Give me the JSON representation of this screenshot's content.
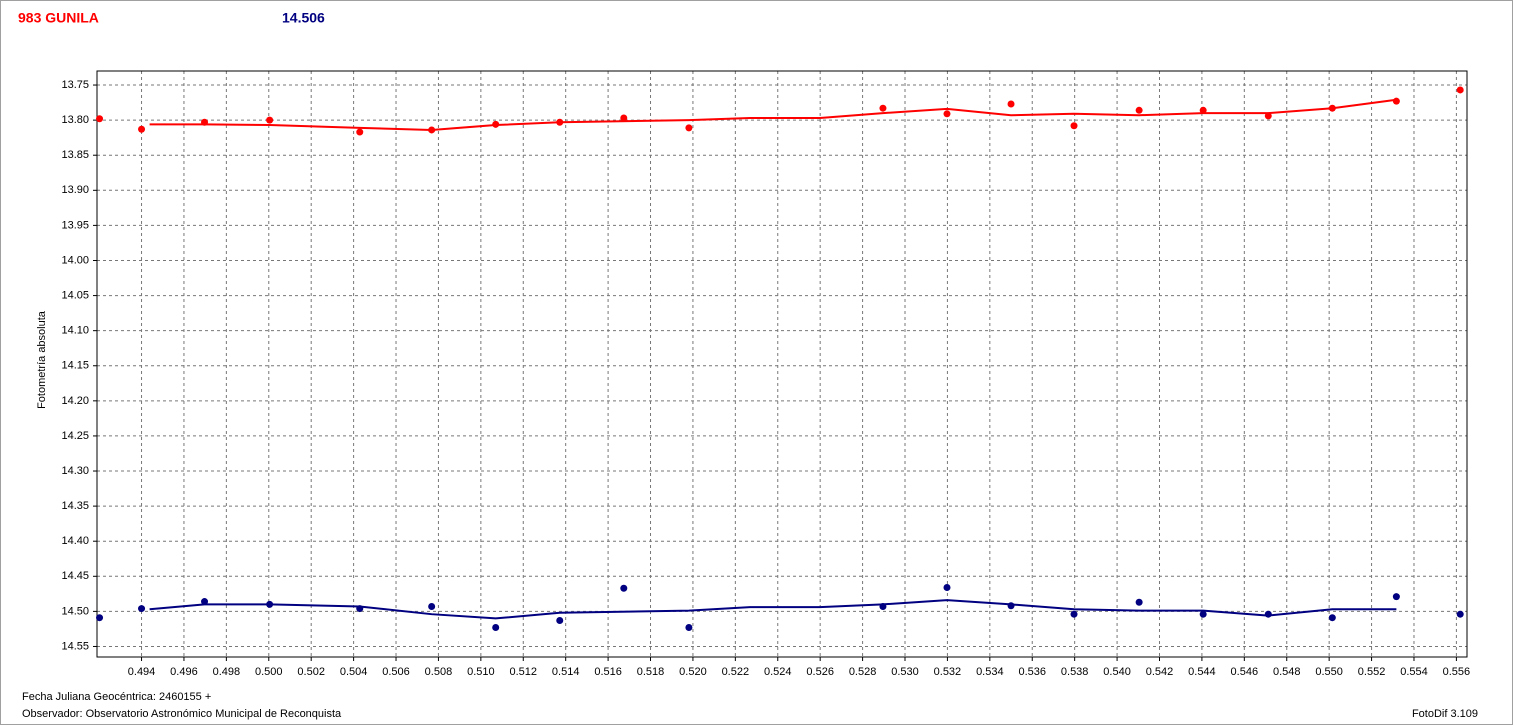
{
  "chart_data": {
    "type": "scatter",
    "y_label": "Fotometría absoluta",
    "footer": [
      "Fecha Juliana Geocéntrica: 2460155 +",
      "Observador: Observatorio Astronómico Municipal de Reconquista"
    ],
    "software": "FotoDif 3.109",
    "y_inverted": true,
    "grid": true,
    "xlim": [
      0.4919,
      0.5565
    ],
    "ylim": [
      13.73,
      14.565
    ],
    "xticks": [
      0.494,
      0.496,
      0.498,
      {
        "value": 0.5,
        "label": "0.500"
      },
      0.502,
      0.504,
      0.506,
      0.508,
      {
        "value": 0.51,
        "label": "0.510"
      },
      0.512,
      0.514,
      0.516,
      0.518,
      {
        "value": 0.52,
        "label": "0.520"
      },
      0.522,
      0.524,
      0.526,
      0.528,
      {
        "value": 0.53,
        "label": "0.530"
      },
      0.532,
      0.534,
      0.536,
      0.538,
      {
        "value": 0.54,
        "label": "0.540"
      },
      0.542,
      0.544,
      0.546,
      0.548,
      {
        "value": 0.55,
        "label": "0.550"
      },
      0.552,
      0.554,
      0.556
    ],
    "yticks": [
      13.75,
      {
        "value": 13.8,
        "label": "13.80"
      },
      13.85,
      {
        "value": 13.9,
        "label": "13.90"
      },
      13.95,
      {
        "value": 14,
        "label": "14.00"
      },
      14.05,
      {
        "value": 14.1,
        "label": "14.10"
      },
      14.15,
      {
        "value": 14.2,
        "label": "14.20"
      },
      14.25,
      {
        "value": 14.3,
        "label": "14.30"
      },
      14.35,
      {
        "value": 14.4,
        "label": "14.40"
      },
      14.45,
      {
        "value": 14.5,
        "label": "14.50"
      },
      14.55
    ],
    "series": [
      {
        "name": "983 GUNILA",
        "color": "#ff0000",
        "kind": "points",
        "x": [
          0.49202,
          0.494,
          0.49697,
          0.50004,
          0.50429,
          0.50768,
          0.5107,
          0.51372,
          0.51674,
          0.51981,
          0.52896,
          0.53198,
          0.535,
          0.53797,
          0.54104,
          0.54406,
          0.54713,
          0.55015,
          0.55317,
          0.55618
        ],
        "values": [
          13.798,
          13.813,
          13.803,
          13.8,
          13.817,
          13.814,
          13.806,
          13.803,
          13.797,
          13.811,
          13.783,
          13.791,
          13.777,
          13.808,
          13.786,
          13.786,
          13.794,
          13.783,
          13.773,
          13.757
        ]
      },
      {
        "color": "#ff0000",
        "kind": "line",
        "x": [
          0.49438,
          0.49697,
          0.50004,
          0.50429,
          0.50768,
          0.5107,
          0.51372,
          0.51981,
          0.52269,
          0.52599,
          0.52896,
          0.53198,
          0.535,
          0.53797,
          0.54104,
          0.54406,
          0.54713,
          0.55015,
          0.55317
        ],
        "values": [
          13.806,
          13.806,
          13.807,
          13.811,
          13.814,
          13.807,
          13.803,
          13.8,
          13.797,
          13.797,
          13.79,
          13.784,
          13.793,
          13.791,
          13.793,
          13.79,
          13.79,
          13.783,
          13.771
        ]
      },
      {
        "name": "14.506",
        "color": "#000080",
        "kind": "points",
        "x": [
          0.49202,
          0.494,
          0.49697,
          0.50004,
          0.50429,
          0.50768,
          0.5107,
          0.51372,
          0.51674,
          0.51981,
          0.52896,
          0.53198,
          0.535,
          0.53797,
          0.54104,
          0.54406,
          0.54713,
          0.55015,
          0.55317,
          0.55618
        ],
        "values": [
          14.509,
          14.496,
          14.486,
          14.49,
          14.496,
          14.493,
          14.523,
          14.513,
          14.467,
          14.523,
          14.493,
          14.466,
          14.492,
          14.504,
          14.487,
          14.504,
          14.504,
          14.509,
          14.479,
          14.504
        ]
      },
      {
        "color": "#000080",
        "kind": "line",
        "x": [
          0.49438,
          0.49697,
          0.50004,
          0.50429,
          0.50768,
          0.5107,
          0.51372,
          0.51981,
          0.52269,
          0.52599,
          0.52896,
          0.53198,
          0.535,
          0.53797,
          0.54104,
          0.54406,
          0.54713,
          0.55015,
          0.55317
        ],
        "values": [
          14.497,
          14.49,
          14.49,
          14.493,
          14.504,
          14.51,
          14.502,
          14.499,
          14.494,
          14.494,
          14.49,
          14.484,
          14.49,
          14.497,
          14.499,
          14.499,
          14.506,
          14.497,
          14.497
        ]
      }
    ]
  }
}
